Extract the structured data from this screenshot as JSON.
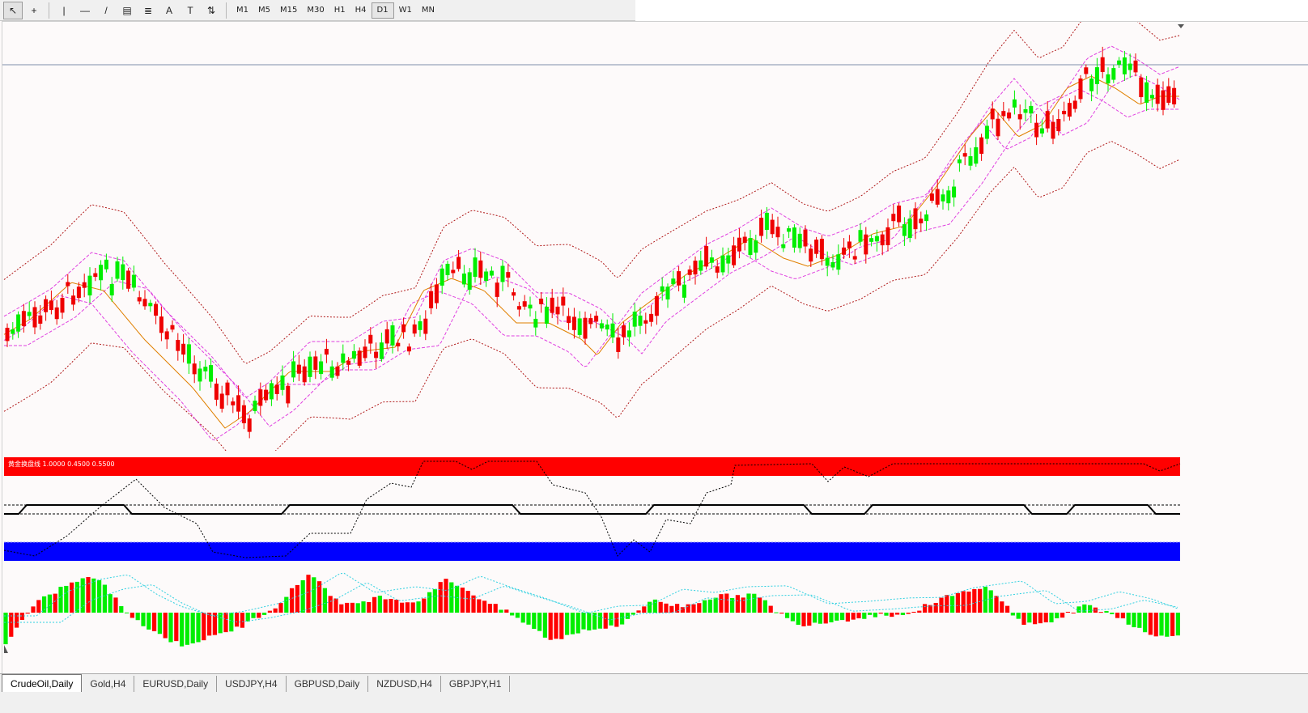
{
  "toolbar": {
    "tools": [
      {
        "name": "cursor-arrow-icon",
        "glyph": "↖"
      },
      {
        "name": "crosshair-icon",
        "glyph": "+"
      },
      {
        "name": "vertical-line-icon",
        "glyph": "|"
      },
      {
        "name": "horizontal-line-icon",
        "glyph": "—"
      },
      {
        "name": "trendline-icon",
        "glyph": "/"
      },
      {
        "name": "equidistant-channel-icon",
        "glyph": "▤"
      },
      {
        "name": "fibonacci-retracement-icon",
        "glyph": "≣"
      },
      {
        "name": "text-icon",
        "glyph": "A"
      },
      {
        "name": "text-label-icon",
        "glyph": "T"
      },
      {
        "name": "arrows-icon",
        "glyph": "⇅"
      }
    ],
    "timeframes": [
      "M1",
      "M5",
      "M15",
      "M30",
      "H1",
      "H4",
      "D1",
      "W1",
      "MN"
    ],
    "active_timeframe": "D1"
  },
  "indicator_label": "黄金换盘线 1.0000 0.4500 0.5500",
  "colors": {
    "bull": "#00ee00",
    "bear": "#ee0000",
    "bollinger": "#b01818",
    "envelope": "#e040e0",
    "ma": "#e08000",
    "osc_red": "#ff0000",
    "osc_blue": "#0000ff",
    "hist_signal": "#30d0e0"
  },
  "tabs": [
    "CrudeOil,Daily",
    "Gold,H4",
    "EURUSD,Daily",
    "USDJPY,H4",
    "GBPUSD,Daily",
    "NZDUSD,H4",
    "GBPJPY,H1"
  ],
  "active_tab": "CrudeOil,Daily"
}
